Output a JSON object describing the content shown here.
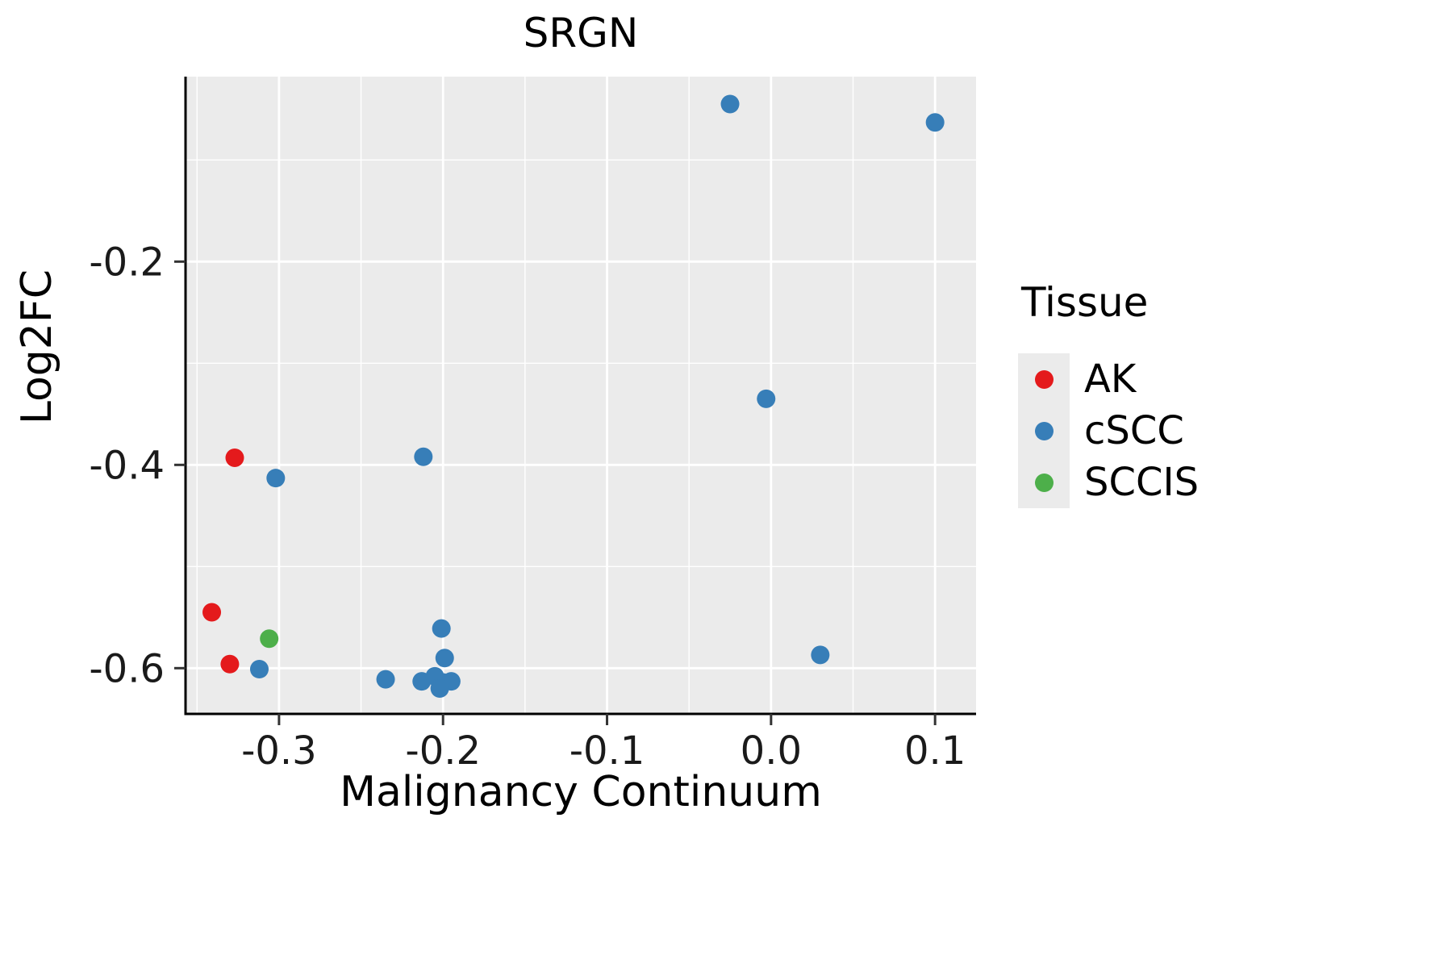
{
  "chart_data": {
    "type": "scatter",
    "title": "SRGN",
    "xlabel": "Malignancy Continuum",
    "ylabel": "Log2FC",
    "xlim": [
      -0.357,
      0.125
    ],
    "ylim": [
      -0.645,
      -0.018
    ],
    "x_ticks": [
      -0.3,
      -0.2,
      -0.1,
      0.0,
      0.1
    ],
    "x_tick_labels": [
      "-0.3",
      "-0.2",
      "-0.1",
      "0.0",
      "0.1"
    ],
    "y_ticks": [
      -0.2,
      -0.4,
      -0.6
    ],
    "y_tick_labels": [
      "-0.2",
      "-0.4",
      "-0.6"
    ],
    "x_minor_ticks": [
      -0.35,
      -0.25,
      -0.15,
      -0.05,
      0.05
    ],
    "y_minor_ticks": [
      -0.1,
      -0.3,
      -0.5
    ],
    "grid": true,
    "panel_bg": "#EBEBEB",
    "grid_color": "#FFFFFF",
    "axis_color": "#000000",
    "tick_label_color": "#1a1a1a",
    "point_radius": 11.5,
    "legend": {
      "title": "Tissue",
      "position": "right"
    },
    "series": [
      {
        "name": "AK",
        "color": "#E41A1C",
        "points": [
          [
            -0.327,
            -0.393
          ],
          [
            -0.341,
            -0.545
          ],
          [
            -0.33,
            -0.596
          ]
        ]
      },
      {
        "name": "cSCC",
        "color": "#377EB8",
        "points": [
          [
            -0.025,
            -0.045
          ],
          [
            0.1,
            -0.063
          ],
          [
            -0.003,
            -0.335
          ],
          [
            -0.212,
            -0.392
          ],
          [
            -0.302,
            -0.413
          ],
          [
            -0.201,
            -0.561
          ],
          [
            -0.199,
            -0.59
          ],
          [
            0.03,
            -0.587
          ],
          [
            -0.312,
            -0.601
          ],
          [
            -0.235,
            -0.611
          ],
          [
            -0.213,
            -0.613
          ],
          [
            -0.205,
            -0.608
          ],
          [
            -0.2,
            -0.614
          ],
          [
            -0.195,
            -0.613
          ],
          [
            -0.202,
            -0.62
          ]
        ]
      },
      {
        "name": "SCCIS",
        "color": "#4DAF4A",
        "points": [
          [
            -0.306,
            -0.571
          ]
        ]
      }
    ]
  }
}
